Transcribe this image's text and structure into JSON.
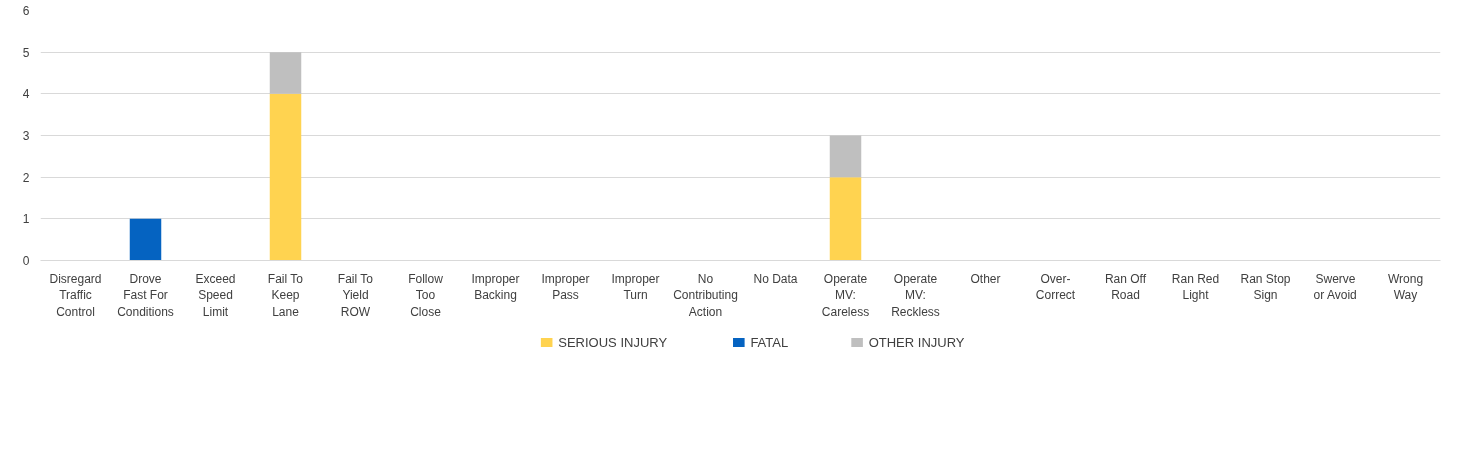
{
  "chart_data": {
    "type": "bar",
    "stacked": true,
    "categories": [
      "Disregard Traffic Control",
      "Drove Fast For Conditions",
      "Exceed Speed Limit",
      "Fail To Keep Lane",
      "Fail To Yield ROW",
      "Follow Too Close",
      "Improper Backing",
      "Improper Pass",
      "Improper Turn",
      "No Contributing Action",
      "No Data",
      "Operate MV: Careless",
      "Operate MV: Reckless",
      "Other",
      "Over-Correct",
      "Ran Off Road",
      "Ran Red Light",
      "Ran Stop Sign",
      "Swerve or Avoid",
      "Wrong Way"
    ],
    "series": [
      {
        "name": "SERIOUS INJURY",
        "color": "#ffd350",
        "values": [
          0,
          0,
          0,
          4,
          0,
          0,
          0,
          0,
          0,
          0,
          0,
          2,
          0,
          0,
          0,
          0,
          0,
          0,
          0,
          0
        ]
      },
      {
        "name": "FATAL",
        "color": "#0563c1",
        "values": [
          0,
          1,
          0,
          0,
          0,
          0,
          0,
          0,
          0,
          0,
          0,
          0,
          0,
          0,
          0,
          0,
          0,
          0,
          0,
          0
        ]
      },
      {
        "name": "OTHER INJURY",
        "color": "#bfbfbf",
        "values": [
          0,
          0,
          0,
          1,
          0,
          0,
          0,
          0,
          0,
          0,
          0,
          1,
          0,
          0,
          0,
          0,
          0,
          0,
          0,
          0
        ]
      }
    ],
    "ylim": [
      0,
      6
    ],
    "yticks": [
      0,
      1,
      2,
      3,
      4,
      5,
      6
    ],
    "grid": "y",
    "legend": "bottom"
  }
}
